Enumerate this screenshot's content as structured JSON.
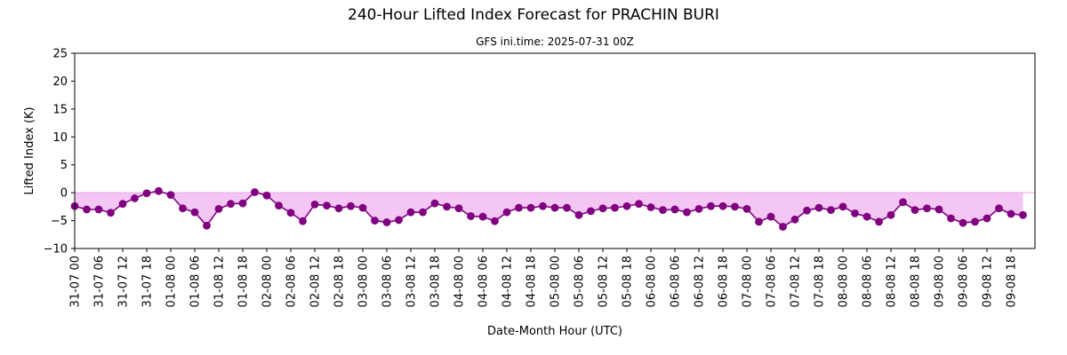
{
  "chart_data": {
    "type": "line",
    "title": "240-Hour Lifted Index Forecast for PRACHIN BURI",
    "subtitle": "GFS ini.time: 2025-07-31 00Z",
    "xlabel": "Date-Month Hour (UTC)",
    "ylabel": "Lifted Index (K)",
    "ylim": [
      -10,
      25
    ],
    "yticks": [
      -10,
      -5,
      0,
      5,
      10,
      15,
      20,
      25
    ],
    "x_step_hours": 3,
    "xlim_index": [
      0,
      80
    ],
    "xtick_every": 2,
    "xtick_labels": [
      "31-07 00",
      "31-07 06",
      "31-07 12",
      "31-07 18",
      "01-08 00",
      "01-08 06",
      "01-08 12",
      "01-08 18",
      "02-08 00",
      "02-08 06",
      "02-08 12",
      "02-08 18",
      "03-08 00",
      "03-08 06",
      "03-08 12",
      "03-08 18",
      "04-08 00",
      "04-08 06",
      "04-08 12",
      "04-08 18",
      "05-08 00",
      "05-08 06",
      "05-08 12",
      "05-08 18",
      "06-08 00",
      "06-08 06",
      "06-08 12",
      "06-08 18",
      "07-08 00",
      "07-08 06",
      "07-08 12",
      "07-08 18",
      "08-08 00",
      "08-08 06",
      "08-08 12",
      "08-08 18",
      "09-08 00",
      "09-08 06",
      "09-08 12",
      "09-08 18"
    ],
    "series": [
      {
        "values": [
          -2.4,
          -3.0,
          -3.0,
          -3.6,
          -2.0,
          -1.0,
          -0.1,
          0.3,
          -0.4,
          -2.8,
          -3.5,
          -5.9,
          -2.9,
          -2.0,
          -1.9,
          0.1,
          -0.5,
          -2.3,
          -3.6,
          -5.1,
          -2.1,
          -2.3,
          -2.8,
          -2.4,
          -2.7,
          -5.0,
          -5.3,
          -4.9,
          -3.5,
          -3.5,
          -1.9,
          -2.5,
          -2.8,
          -4.2,
          -4.3,
          -5.1,
          -3.5,
          -2.7,
          -2.7,
          -2.4,
          -2.7,
          -2.7,
          -4.0,
          -3.3,
          -2.8,
          -2.7,
          -2.4,
          -2.0,
          -2.6,
          -3.1,
          -3.0,
          -3.5,
          -2.9,
          -2.4,
          -2.4,
          -2.5,
          -2.9,
          -5.2,
          -4.3,
          -6.1,
          -4.8,
          -3.2,
          -2.7,
          -3.1,
          -2.5,
          -3.7,
          -4.3,
          -5.2,
          -4.0,
          -1.7,
          -3.1,
          -2.8,
          -3.0,
          -4.6,
          -5.4,
          -5.2,
          -4.6,
          -2.8,
          -3.8,
          -4.0
        ],
        "color": "#800080",
        "fill_color": "#f4c6f4",
        "marker": "circle"
      }
    ],
    "grid": false,
    "legend": "none"
  }
}
